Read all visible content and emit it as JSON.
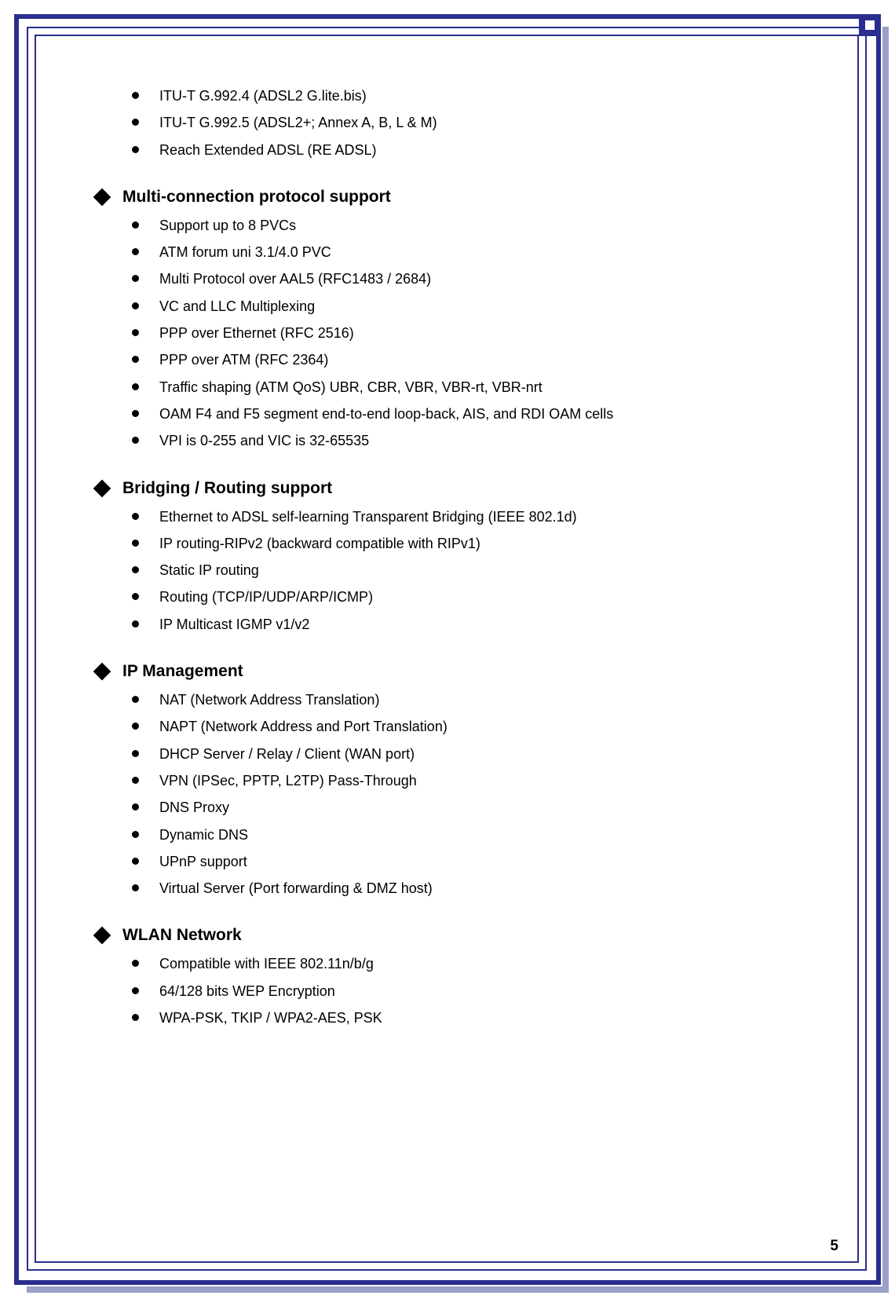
{
  "page_number": "5",
  "colors": {
    "frame": "#2a2e8f",
    "shadow": "#9aa0c8",
    "text": "#000000",
    "bg": "#ffffff"
  },
  "top_items": [
    "ITU-T G.992.4 (ADSL2 G.lite.bis)",
    "ITU-T G.992.5 (ADSL2+; Annex A, B, L & M)",
    "Reach Extended ADSL (RE ADSL)"
  ],
  "sections": [
    {
      "title": "Multi-connection protocol support",
      "items": [
        "Support up to 8 PVCs",
        "ATM forum uni 3.1/4.0 PVC",
        "Multi Protocol over AAL5 (RFC1483 / 2684)",
        "VC and LLC Multiplexing",
        "PPP over Ethernet (RFC 2516)",
        "PPP over ATM (RFC 2364)",
        "Traffic shaping (ATM QoS) UBR, CBR, VBR, VBR-rt, VBR-nrt",
        "OAM F4 and F5 segment end-to-end loop-back, AIS, and RDI OAM cells",
        "VPI is 0-255 and VIC is 32-65535"
      ]
    },
    {
      "title": "Bridging / Routing support",
      "items": [
        "Ethernet to ADSL self-learning Transparent Bridging (IEEE 802.1d)",
        "IP routing-RIPv2 (backward compatible with RIPv1)",
        "Static IP routing",
        "Routing (TCP/IP/UDP/ARP/ICMP)",
        "IP Multicast IGMP v1/v2"
      ]
    },
    {
      "title": "IP Management",
      "items": [
        "NAT (Network Address Translation)",
        "NAPT (Network Address and Port Translation)",
        "DHCP Server / Relay / Client (WAN port)",
        "VPN (IPSec, PPTP, L2TP) Pass-Through",
        "DNS Proxy",
        "Dynamic DNS",
        "UPnP support",
        "Virtual Server (Port forwarding & DMZ host)"
      ]
    },
    {
      "title": "WLAN Network",
      "items": [
        "Compatible with IEEE 802.11n/b/g",
        "64/128 bits WEP Encryption",
        "WPA-PSK, TKIP / WPA2-AES, PSK"
      ]
    }
  ]
}
